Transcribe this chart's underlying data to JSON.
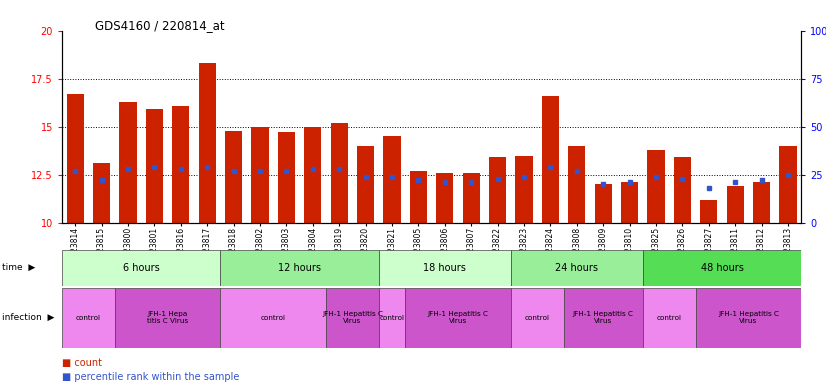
{
  "title": "GDS4160 / 220814_at",
  "samples": [
    "GSM523814",
    "GSM523815",
    "GSM523800",
    "GSM523801",
    "GSM523816",
    "GSM523817",
    "GSM523818",
    "GSM523802",
    "GSM523803",
    "GSM523804",
    "GSM523819",
    "GSM523820",
    "GSM523821",
    "GSM523805",
    "GSM523806",
    "GSM523807",
    "GSM523822",
    "GSM523823",
    "GSM523824",
    "GSM523808",
    "GSM523809",
    "GSM523810",
    "GSM523825",
    "GSM523826",
    "GSM523827",
    "GSM523811",
    "GSM523812",
    "GSM523813"
  ],
  "count_values": [
    16.7,
    13.1,
    16.3,
    15.9,
    16.1,
    18.3,
    14.8,
    15.0,
    14.7,
    15.0,
    15.2,
    14.0,
    14.5,
    12.7,
    12.6,
    12.6,
    13.4,
    13.5,
    16.6,
    14.0,
    12.0,
    12.1,
    13.8,
    13.4,
    11.2,
    11.9,
    12.1,
    14.0
  ],
  "percentile_values": [
    27,
    22,
    28,
    29,
    28,
    29,
    27,
    27,
    27,
    28,
    28,
    24,
    24,
    22,
    21,
    21,
    23,
    24,
    29,
    27,
    20,
    21,
    24,
    23,
    18,
    21,
    22,
    25
  ],
  "ylim_left": [
    10,
    20
  ],
  "ylim_right": [
    0,
    100
  ],
  "bar_color": "#cc2200",
  "dot_color": "#3355cc",
  "background_color": "#ffffff",
  "time_groups": [
    {
      "label": "6 hours",
      "start": 0,
      "end": 5,
      "color": "#ccffcc"
    },
    {
      "label": "12 hours",
      "start": 6,
      "end": 11,
      "color": "#99ee99"
    },
    {
      "label": "18 hours",
      "start": 12,
      "end": 16,
      "color": "#ccffcc"
    },
    {
      "label": "24 hours",
      "start": 17,
      "end": 21,
      "color": "#99ee99"
    },
    {
      "label": "48 hours",
      "start": 22,
      "end": 27,
      "color": "#55dd55"
    }
  ],
  "infection_groups": [
    {
      "label": "control",
      "start": 0,
      "end": 1,
      "color": "#ee88ee"
    },
    {
      "label": "JFH-1 Hepa\ntitis C Virus",
      "start": 2,
      "end": 5,
      "color": "#cc55cc"
    },
    {
      "label": "control",
      "start": 6,
      "end": 9,
      "color": "#ee88ee"
    },
    {
      "label": "JFH-1 Hepatitis C\nVirus",
      "start": 10,
      "end": 11,
      "color": "#cc55cc"
    },
    {
      "label": "control",
      "start": 12,
      "end": 12,
      "color": "#ee88ee"
    },
    {
      "label": "JFH-1 Hepatitis C\nVirus",
      "start": 13,
      "end": 16,
      "color": "#cc55cc"
    },
    {
      "label": "control",
      "start": 17,
      "end": 18,
      "color": "#ee88ee"
    },
    {
      "label": "JFH-1 Hepatitis C\nVirus",
      "start": 19,
      "end": 21,
      "color": "#cc55cc"
    },
    {
      "label": "control",
      "start": 22,
      "end": 23,
      "color": "#ee88ee"
    },
    {
      "label": "JFH-1 Hepatitis C\nVirus",
      "start": 24,
      "end": 27,
      "color": "#cc55cc"
    }
  ],
  "dotted_lines": [
    12.5,
    15.0,
    17.5
  ],
  "left_ticks": [
    10,
    12.5,
    15,
    17.5,
    20
  ],
  "right_ticks": [
    0,
    25,
    50,
    75,
    100
  ]
}
